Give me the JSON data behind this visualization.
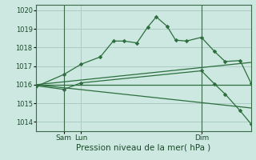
{
  "xlabel": "Pression niveau de la mer( hPa )",
  "bg_color": "#cce8e0",
  "grid_color": "#aaccc4",
  "line_color": "#2d6e3e",
  "vline_color": "#3a6a4a",
  "ylim": [
    1013.5,
    1020.3
  ],
  "yticks": [
    1014,
    1015,
    1016,
    1017,
    1018,
    1019,
    1020
  ],
  "xlim": [
    0.0,
    1.0
  ],
  "vline_positions": [
    0.13,
    0.77
  ],
  "xtick_positions": [
    0.13,
    0.21,
    0.77
  ],
  "xtick_labels": [
    "Sam",
    "Lun",
    "Dim"
  ],
  "series1_x": [
    0.0,
    0.13,
    0.21,
    0.3,
    0.36,
    0.41,
    0.47,
    0.52,
    0.56,
    0.61,
    0.65,
    0.7,
    0.77,
    0.83,
    0.88,
    0.95,
    1.0
  ],
  "series1_y": [
    1015.9,
    1016.55,
    1017.1,
    1017.5,
    1018.35,
    1018.35,
    1018.25,
    1019.1,
    1019.65,
    1019.15,
    1018.4,
    1018.35,
    1018.55,
    1017.8,
    1017.25,
    1017.3,
    1016.1
  ],
  "series2_x": [
    0.0,
    0.13,
    0.21,
    0.77,
    0.83,
    0.88,
    0.95,
    1.0
  ],
  "series2_y": [
    1015.95,
    1015.75,
    1016.1,
    1016.75,
    1016.05,
    1015.5,
    1014.6,
    1013.9
  ],
  "trend1_x": [
    0.0,
    1.0
  ],
  "trend1_y": [
    1016.0,
    1017.2
  ],
  "trend2_x": [
    0.0,
    1.0
  ],
  "trend2_y": [
    1016.0,
    1016.0
  ],
  "trend3_x": [
    0.0,
    1.0
  ],
  "trend3_y": [
    1016.0,
    1014.75
  ]
}
